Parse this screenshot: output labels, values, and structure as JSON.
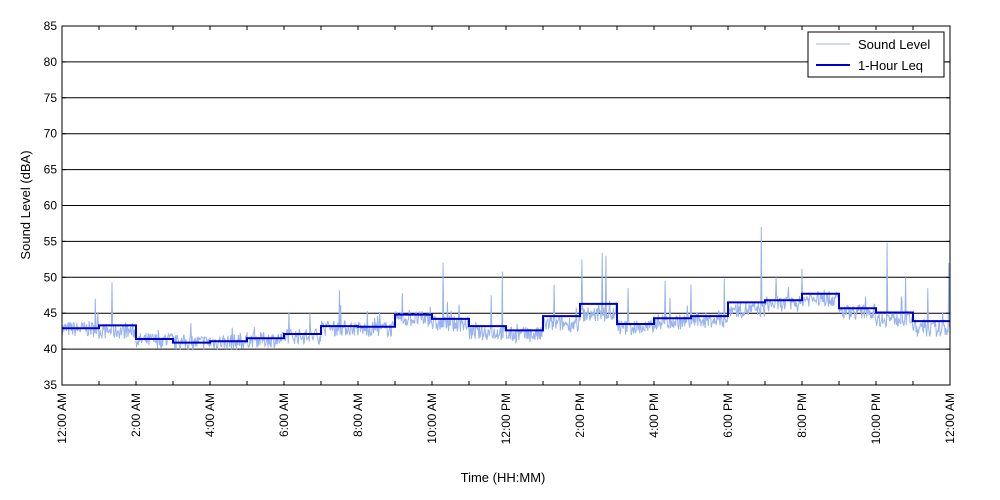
{
  "chart_data": {
    "type": "line",
    "xlabel": "Time (HH:MM)",
    "ylabel": "Sound Level (dBA)",
    "ylim": [
      35,
      85
    ],
    "yticks": [
      35,
      40,
      45,
      50,
      55,
      60,
      65,
      70,
      75,
      80,
      85
    ],
    "xlim_hours": [
      0,
      24
    ],
    "xticks": [
      {
        "hour": 0,
        "label": "12:00 AM"
      },
      {
        "hour": 2,
        "label": "2:00 AM"
      },
      {
        "hour": 4,
        "label": "4:00 AM"
      },
      {
        "hour": 6,
        "label": "6:00 AM"
      },
      {
        "hour": 8,
        "label": "8:00 AM"
      },
      {
        "hour": 10,
        "label": "10:00 AM"
      },
      {
        "hour": 12,
        "label": "12:00 PM"
      },
      {
        "hour": 14,
        "label": "2:00 PM"
      },
      {
        "hour": 16,
        "label": "4:00 PM"
      },
      {
        "hour": 18,
        "label": "6:00 PM"
      },
      {
        "hour": 20,
        "label": "8:00 PM"
      },
      {
        "hour": 22,
        "label": "10:00 PM"
      },
      {
        "hour": 24,
        "label": "12:00 AM"
      }
    ],
    "grid": "horizontal",
    "legend_position": "top-right",
    "series": [
      {
        "name": "Sound Level",
        "style": "thin-line",
        "color": "#99b3ee",
        "note_values": "per-hour baseline with spikes (x = hour, y = dBA)",
        "baseline": [
          42.8,
          42.5,
          41.2,
          40.9,
          41.0,
          41.3,
          41.8,
          42.9,
          42.8,
          44.2,
          43.5,
          42.3,
          42.0,
          43.5,
          44.8,
          43.0,
          43.8,
          44.0,
          45.5,
          46.3,
          47.0,
          45.2,
          44.2,
          42.8
        ],
        "spikes": [
          {
            "x": 1.35,
            "y": 49.3
          },
          {
            "x": 0.9,
            "y": 47.0
          },
          {
            "x": 4.6,
            "y": 43.0
          },
          {
            "x": 6.7,
            "y": 45.0
          },
          {
            "x": 7.5,
            "y": 48.2
          },
          {
            "x": 9.2,
            "y": 47.8
          },
          {
            "x": 10.3,
            "y": 52.0
          },
          {
            "x": 11.6,
            "y": 47.5
          },
          {
            "x": 11.9,
            "y": 50.8
          },
          {
            "x": 13.3,
            "y": 49.0
          },
          {
            "x": 14.05,
            "y": 52.5
          },
          {
            "x": 14.6,
            "y": 53.4
          },
          {
            "x": 14.7,
            "y": 53.0
          },
          {
            "x": 15.3,
            "y": 48.5
          },
          {
            "x": 16.3,
            "y": 49.5
          },
          {
            "x": 17.0,
            "y": 49.0
          },
          {
            "x": 17.9,
            "y": 49.8
          },
          {
            "x": 18.9,
            "y": 57.0
          },
          {
            "x": 19.3,
            "y": 50.0
          },
          {
            "x": 20.0,
            "y": 51.2
          },
          {
            "x": 22.3,
            "y": 54.8
          },
          {
            "x": 22.8,
            "y": 50.0
          },
          {
            "x": 23.4,
            "y": 48.5
          },
          {
            "x": 23.97,
            "y": 52.0
          }
        ]
      },
      {
        "name": "1-Hour Leq",
        "style": "step",
        "color": "#0000cc",
        "hours": [
          0,
          1,
          2,
          3,
          4,
          5,
          6,
          7,
          8,
          9,
          10,
          11,
          12,
          13,
          14,
          15,
          16,
          17,
          18,
          19,
          20,
          21,
          22,
          23
        ],
        "values": [
          42.9,
          43.3,
          41.4,
          40.9,
          41.1,
          41.5,
          42.1,
          43.2,
          43.1,
          44.8,
          44.2,
          43.2,
          42.6,
          44.6,
          46.3,
          43.5,
          44.3,
          44.6,
          46.5,
          46.8,
          47.7,
          45.7,
          45.1,
          43.9
        ]
      }
    ]
  }
}
